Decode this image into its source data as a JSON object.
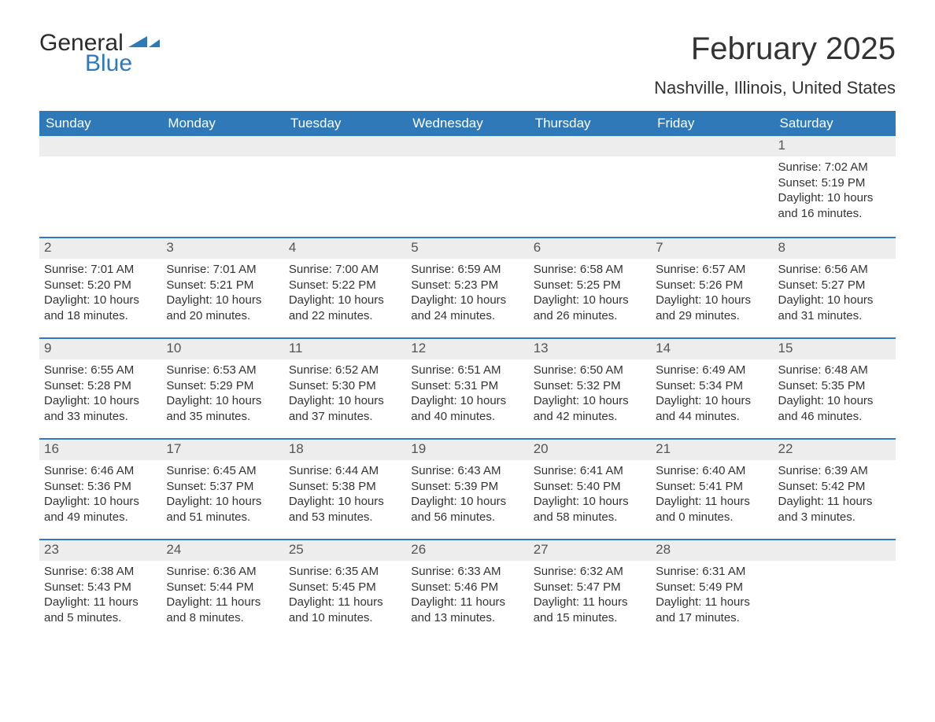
{
  "logo": {
    "text_general": "General",
    "text_blue": "Blue",
    "accent_color": "#2f79b9"
  },
  "title": {
    "month": "February 2025",
    "location": "Nashville, Illinois, United States"
  },
  "colors": {
    "header_bg": "#2f79b9",
    "header_text": "#ffffff",
    "daynum_bg": "#ededed",
    "row_divider": "#2f79b9",
    "text": "#333333",
    "page_bg": "#ffffff"
  },
  "weekdays": [
    "Sunday",
    "Monday",
    "Tuesday",
    "Wednesday",
    "Thursday",
    "Friday",
    "Saturday"
  ],
  "labels": {
    "sunrise": "Sunrise:",
    "sunset": "Sunset:",
    "daylight": "Daylight:"
  },
  "weeks": [
    [
      null,
      null,
      null,
      null,
      null,
      null,
      {
        "d": "1",
        "sunrise": "7:02 AM",
        "sunset": "5:19 PM",
        "daylight": "10 hours and 16 minutes."
      }
    ],
    [
      {
        "d": "2",
        "sunrise": "7:01 AM",
        "sunset": "5:20 PM",
        "daylight": "10 hours and 18 minutes."
      },
      {
        "d": "3",
        "sunrise": "7:01 AM",
        "sunset": "5:21 PM",
        "daylight": "10 hours and 20 minutes."
      },
      {
        "d": "4",
        "sunrise": "7:00 AM",
        "sunset": "5:22 PM",
        "daylight": "10 hours and 22 minutes."
      },
      {
        "d": "5",
        "sunrise": "6:59 AM",
        "sunset": "5:23 PM",
        "daylight": "10 hours and 24 minutes."
      },
      {
        "d": "6",
        "sunrise": "6:58 AM",
        "sunset": "5:25 PM",
        "daylight": "10 hours and 26 minutes."
      },
      {
        "d": "7",
        "sunrise": "6:57 AM",
        "sunset": "5:26 PM",
        "daylight": "10 hours and 29 minutes."
      },
      {
        "d": "8",
        "sunrise": "6:56 AM",
        "sunset": "5:27 PM",
        "daylight": "10 hours and 31 minutes."
      }
    ],
    [
      {
        "d": "9",
        "sunrise": "6:55 AM",
        "sunset": "5:28 PM",
        "daylight": "10 hours and 33 minutes."
      },
      {
        "d": "10",
        "sunrise": "6:53 AM",
        "sunset": "5:29 PM",
        "daylight": "10 hours and 35 minutes."
      },
      {
        "d": "11",
        "sunrise": "6:52 AM",
        "sunset": "5:30 PM",
        "daylight": "10 hours and 37 minutes."
      },
      {
        "d": "12",
        "sunrise": "6:51 AM",
        "sunset": "5:31 PM",
        "daylight": "10 hours and 40 minutes."
      },
      {
        "d": "13",
        "sunrise": "6:50 AM",
        "sunset": "5:32 PM",
        "daylight": "10 hours and 42 minutes."
      },
      {
        "d": "14",
        "sunrise": "6:49 AM",
        "sunset": "5:34 PM",
        "daylight": "10 hours and 44 minutes."
      },
      {
        "d": "15",
        "sunrise": "6:48 AM",
        "sunset": "5:35 PM",
        "daylight": "10 hours and 46 minutes."
      }
    ],
    [
      {
        "d": "16",
        "sunrise": "6:46 AM",
        "sunset": "5:36 PM",
        "daylight": "10 hours and 49 minutes."
      },
      {
        "d": "17",
        "sunrise": "6:45 AM",
        "sunset": "5:37 PM",
        "daylight": "10 hours and 51 minutes."
      },
      {
        "d": "18",
        "sunrise": "6:44 AM",
        "sunset": "5:38 PM",
        "daylight": "10 hours and 53 minutes."
      },
      {
        "d": "19",
        "sunrise": "6:43 AM",
        "sunset": "5:39 PM",
        "daylight": "10 hours and 56 minutes."
      },
      {
        "d": "20",
        "sunrise": "6:41 AM",
        "sunset": "5:40 PM",
        "daylight": "10 hours and 58 minutes."
      },
      {
        "d": "21",
        "sunrise": "6:40 AM",
        "sunset": "5:41 PM",
        "daylight": "11 hours and 0 minutes."
      },
      {
        "d": "22",
        "sunrise": "6:39 AM",
        "sunset": "5:42 PM",
        "daylight": "11 hours and 3 minutes."
      }
    ],
    [
      {
        "d": "23",
        "sunrise": "6:38 AM",
        "sunset": "5:43 PM",
        "daylight": "11 hours and 5 minutes."
      },
      {
        "d": "24",
        "sunrise": "6:36 AM",
        "sunset": "5:44 PM",
        "daylight": "11 hours and 8 minutes."
      },
      {
        "d": "25",
        "sunrise": "6:35 AM",
        "sunset": "5:45 PM",
        "daylight": "11 hours and 10 minutes."
      },
      {
        "d": "26",
        "sunrise": "6:33 AM",
        "sunset": "5:46 PM",
        "daylight": "11 hours and 13 minutes."
      },
      {
        "d": "27",
        "sunrise": "6:32 AM",
        "sunset": "5:47 PM",
        "daylight": "11 hours and 15 minutes."
      },
      {
        "d": "28",
        "sunrise": "6:31 AM",
        "sunset": "5:49 PM",
        "daylight": "11 hours and 17 minutes."
      },
      null
    ]
  ]
}
